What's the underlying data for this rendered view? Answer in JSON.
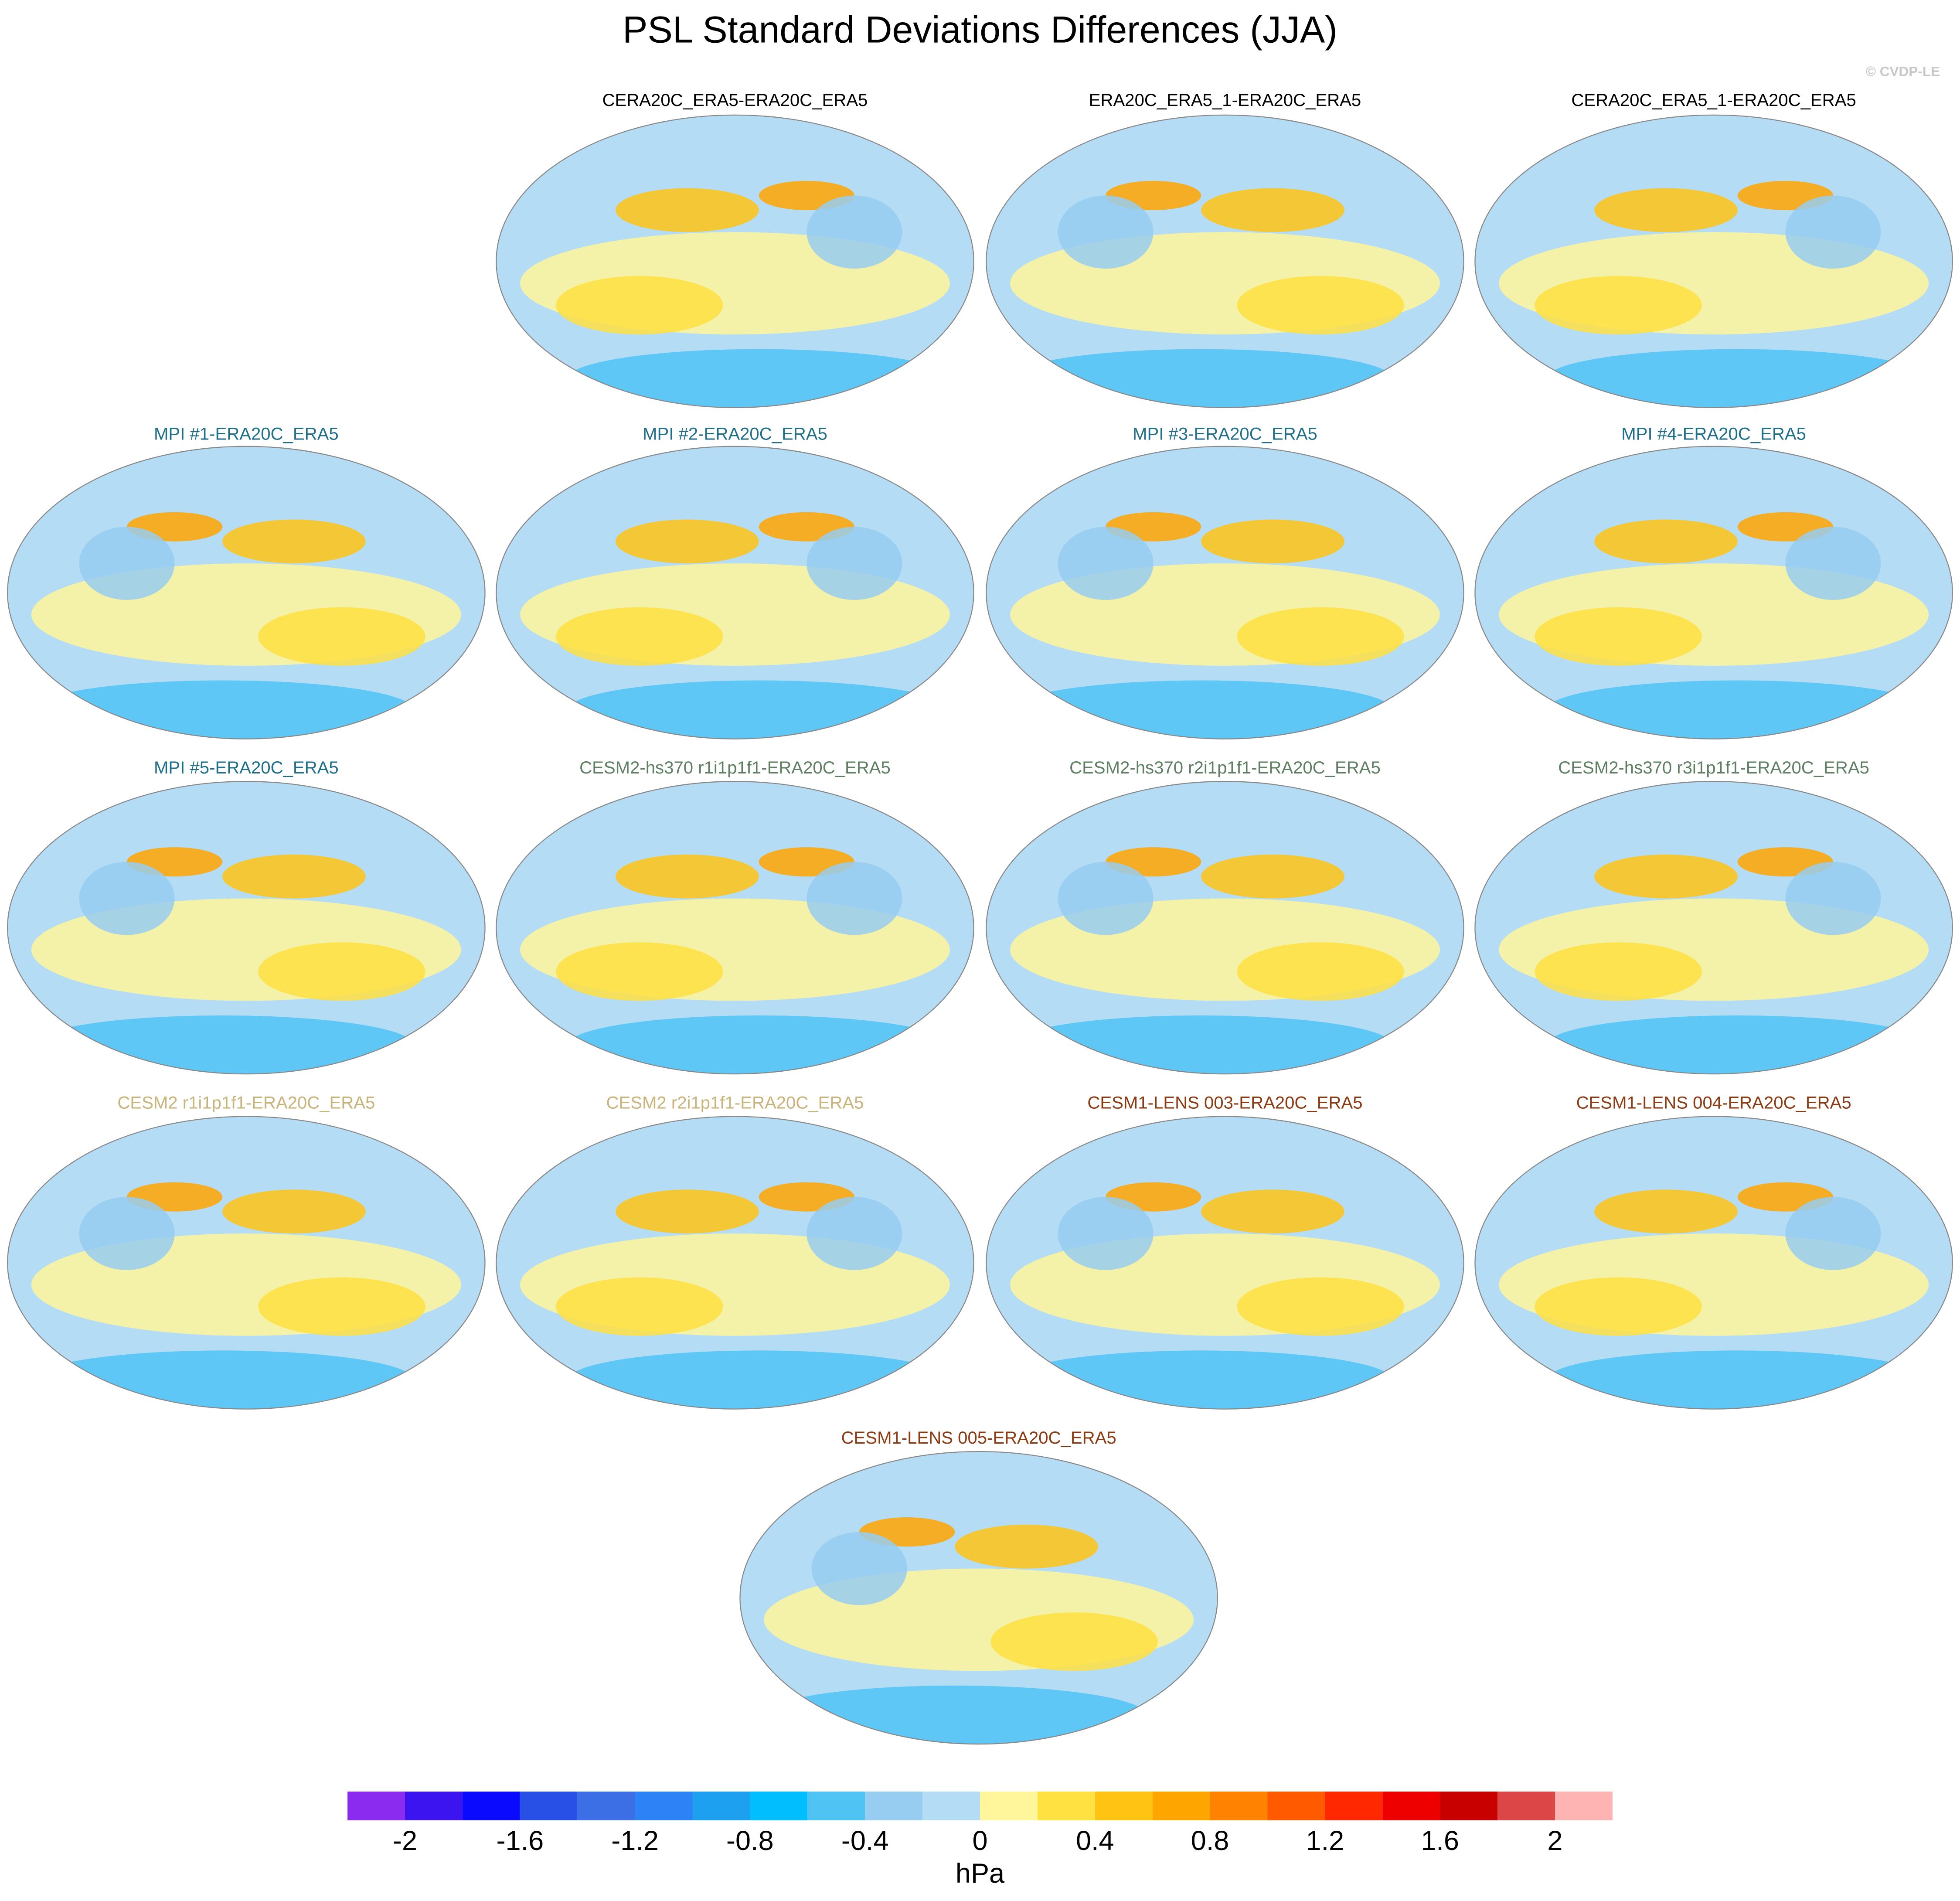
{
  "title": "PSL Standard Deviations Differences (JJA)",
  "watermark": "© CVDP-LE",
  "panels": [
    {
      "title": "CERA20C_ERA5-ERA20C_ERA5",
      "color": "#000000"
    },
    {
      "title": "ERA20C_ERA5_1-ERA20C_ERA5",
      "color": "#000000"
    },
    {
      "title": "CERA20C_ERA5_1-ERA20C_ERA5",
      "color": "#000000"
    },
    {
      "title": "MPI #1-ERA20C_ERA5",
      "color": "#1f6f8b"
    },
    {
      "title": "MPI #2-ERA20C_ERA5",
      "color": "#1f6f8b"
    },
    {
      "title": "MPI #3-ERA20C_ERA5",
      "color": "#1f6f8b"
    },
    {
      "title": "MPI #4-ERA20C_ERA5",
      "color": "#1f6f8b"
    },
    {
      "title": "MPI #5-ERA20C_ERA5",
      "color": "#1f6f8b"
    },
    {
      "title": "CESM2-hs370 r1i1p1f1-ERA20C_ERA5",
      "color": "#5f7f62"
    },
    {
      "title": "CESM2-hs370 r2i1p1f1-ERA20C_ERA5",
      "color": "#5f7f62"
    },
    {
      "title": "CESM2-hs370 r3i1p1f1-ERA20C_ERA5",
      "color": "#5f7f62"
    },
    {
      "title": "CESM2 r1i1p1f1-ERA20C_ERA5",
      "color": "#c8b47a"
    },
    {
      "title": "CESM2 r2i1p1f1-ERA20C_ERA5",
      "color": "#c8b47a"
    },
    {
      "title": "CESM1-LENS 003-ERA20C_ERA5",
      "color": "#8b3a12"
    },
    {
      "title": "CESM1-LENS 004-ERA20C_ERA5",
      "color": "#8b3a12"
    },
    {
      "title": "CESM1-LENS 005-ERA20C_ERA5",
      "color": "#8b3a12"
    }
  ],
  "colorbar": {
    "units": "hPa",
    "colors": [
      "#8c2bf0",
      "#3c14f0",
      "#0a0aff",
      "#2850e6",
      "#3c6ee6",
      "#2d82f5",
      "#1ea0f0",
      "#00beff",
      "#50c3f5",
      "#96cdf0",
      "#b4dcf5",
      "#fff59b",
      "#ffe141",
      "#ffc314",
      "#ffa500",
      "#ff8200",
      "#ff5a00",
      "#ff2800",
      "#ef0000",
      "#c80000",
      "#dc4646",
      "#ffb4b4"
    ],
    "levels": [
      -2,
      -1.8,
      -1.6,
      -1.4,
      -1.2,
      -1,
      -0.8,
      -0.6,
      -0.4,
      -0.2,
      0,
      0.2,
      0.4,
      0.6,
      0.8,
      1,
      1.2,
      1.4,
      1.6,
      1.8,
      2
    ],
    "ticks": [
      -2,
      -1.6,
      -1.2,
      -0.8,
      -0.4,
      0,
      0.4,
      0.8,
      1.2,
      1.6,
      2
    ]
  }
}
